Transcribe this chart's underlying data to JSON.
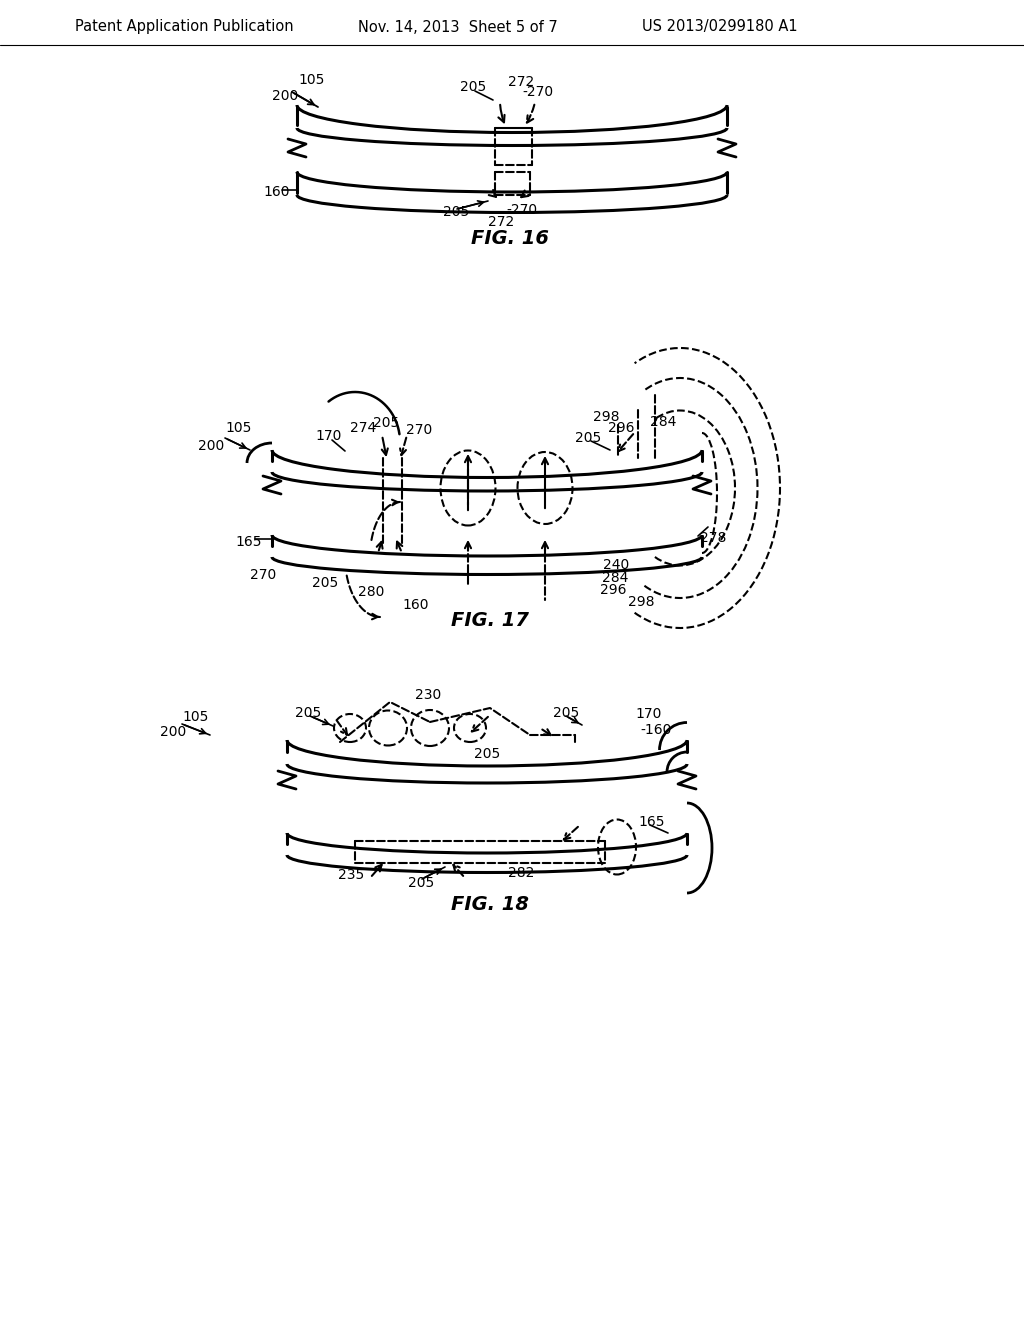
{
  "bg_color": "#ffffff",
  "text_color": "#000000",
  "header_left": "Patent Application Publication",
  "header_center": "Nov. 14, 2013  Sheet 5 of 7",
  "header_right": "US 2013/0299180 A1",
  "fig16_label": "FIG. 16",
  "fig17_label": "FIG. 17",
  "fig18_label": "FIG. 18"
}
